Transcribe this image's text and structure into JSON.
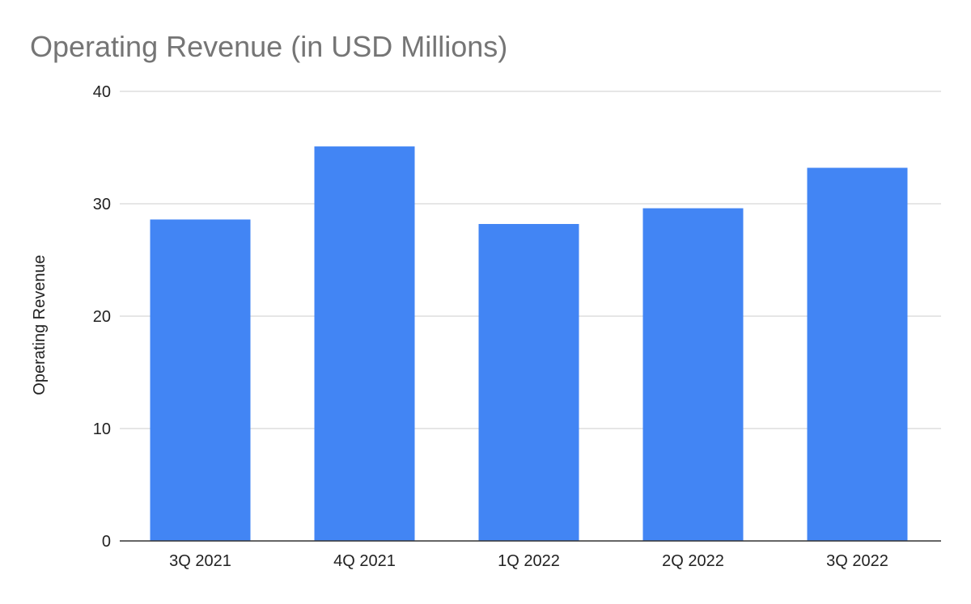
{
  "chart_data": {
    "type": "bar",
    "title": "Operating Revenue (in USD Millions)",
    "xlabel": "",
    "ylabel": "Operating Revenue",
    "categories": [
      "3Q 2021",
      "4Q 2021",
      "1Q 2022",
      "2Q 2022",
      "3Q 2022"
    ],
    "series": [
      {
        "values": [
          28.6,
          35.1,
          28.2,
          29.6,
          33.2
        ],
        "color": "#4285f4"
      }
    ],
    "ylim": [
      0,
      40
    ],
    "yticks": [
      0,
      10,
      20,
      30,
      40
    ],
    "grid": true,
    "legend": "none"
  },
  "colors": {
    "bar": "#4285f4",
    "title": "#757575",
    "text": "#222222",
    "grid": "#cccccc",
    "axis": "#333333"
  }
}
